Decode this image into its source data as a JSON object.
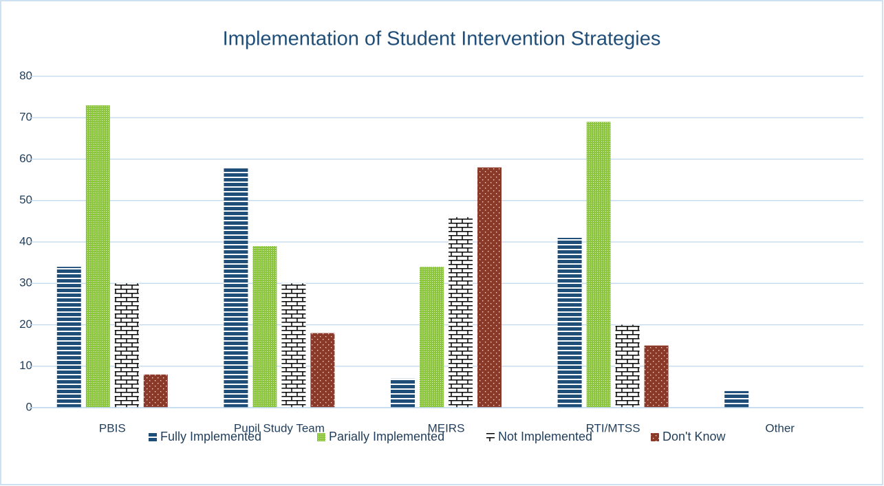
{
  "chart_data": {
    "type": "bar",
    "title": "Implementation of Student Intervention Strategies",
    "categories": [
      "PBIS",
      "Pupil Study Team",
      "MEIRS",
      "RTI/MTSS",
      "Other"
    ],
    "series": [
      {
        "name": "Fully Implemented",
        "color": "#1f4e79",
        "pattern": "horizontal",
        "values": [
          34,
          58,
          7,
          41,
          4
        ]
      },
      {
        "name": "Parially Implemented",
        "color": "#8cc63f",
        "pattern": "dots",
        "values": [
          73,
          39,
          34,
          69,
          0
        ]
      },
      {
        "name": "Not Implemented",
        "color": "#000000",
        "pattern": "brick",
        "values": [
          30,
          30,
          46,
          20,
          0
        ]
      },
      {
        "name": "Don't Know",
        "color": "#8b3a2a",
        "pattern": "sparse-dots",
        "values": [
          8,
          18,
          58,
          15,
          0
        ]
      }
    ],
    "ylim": [
      0,
      80
    ],
    "yticks": [
      0,
      10,
      20,
      30,
      40,
      50,
      60,
      70,
      80
    ],
    "grid": true,
    "legend": "bottom"
  }
}
